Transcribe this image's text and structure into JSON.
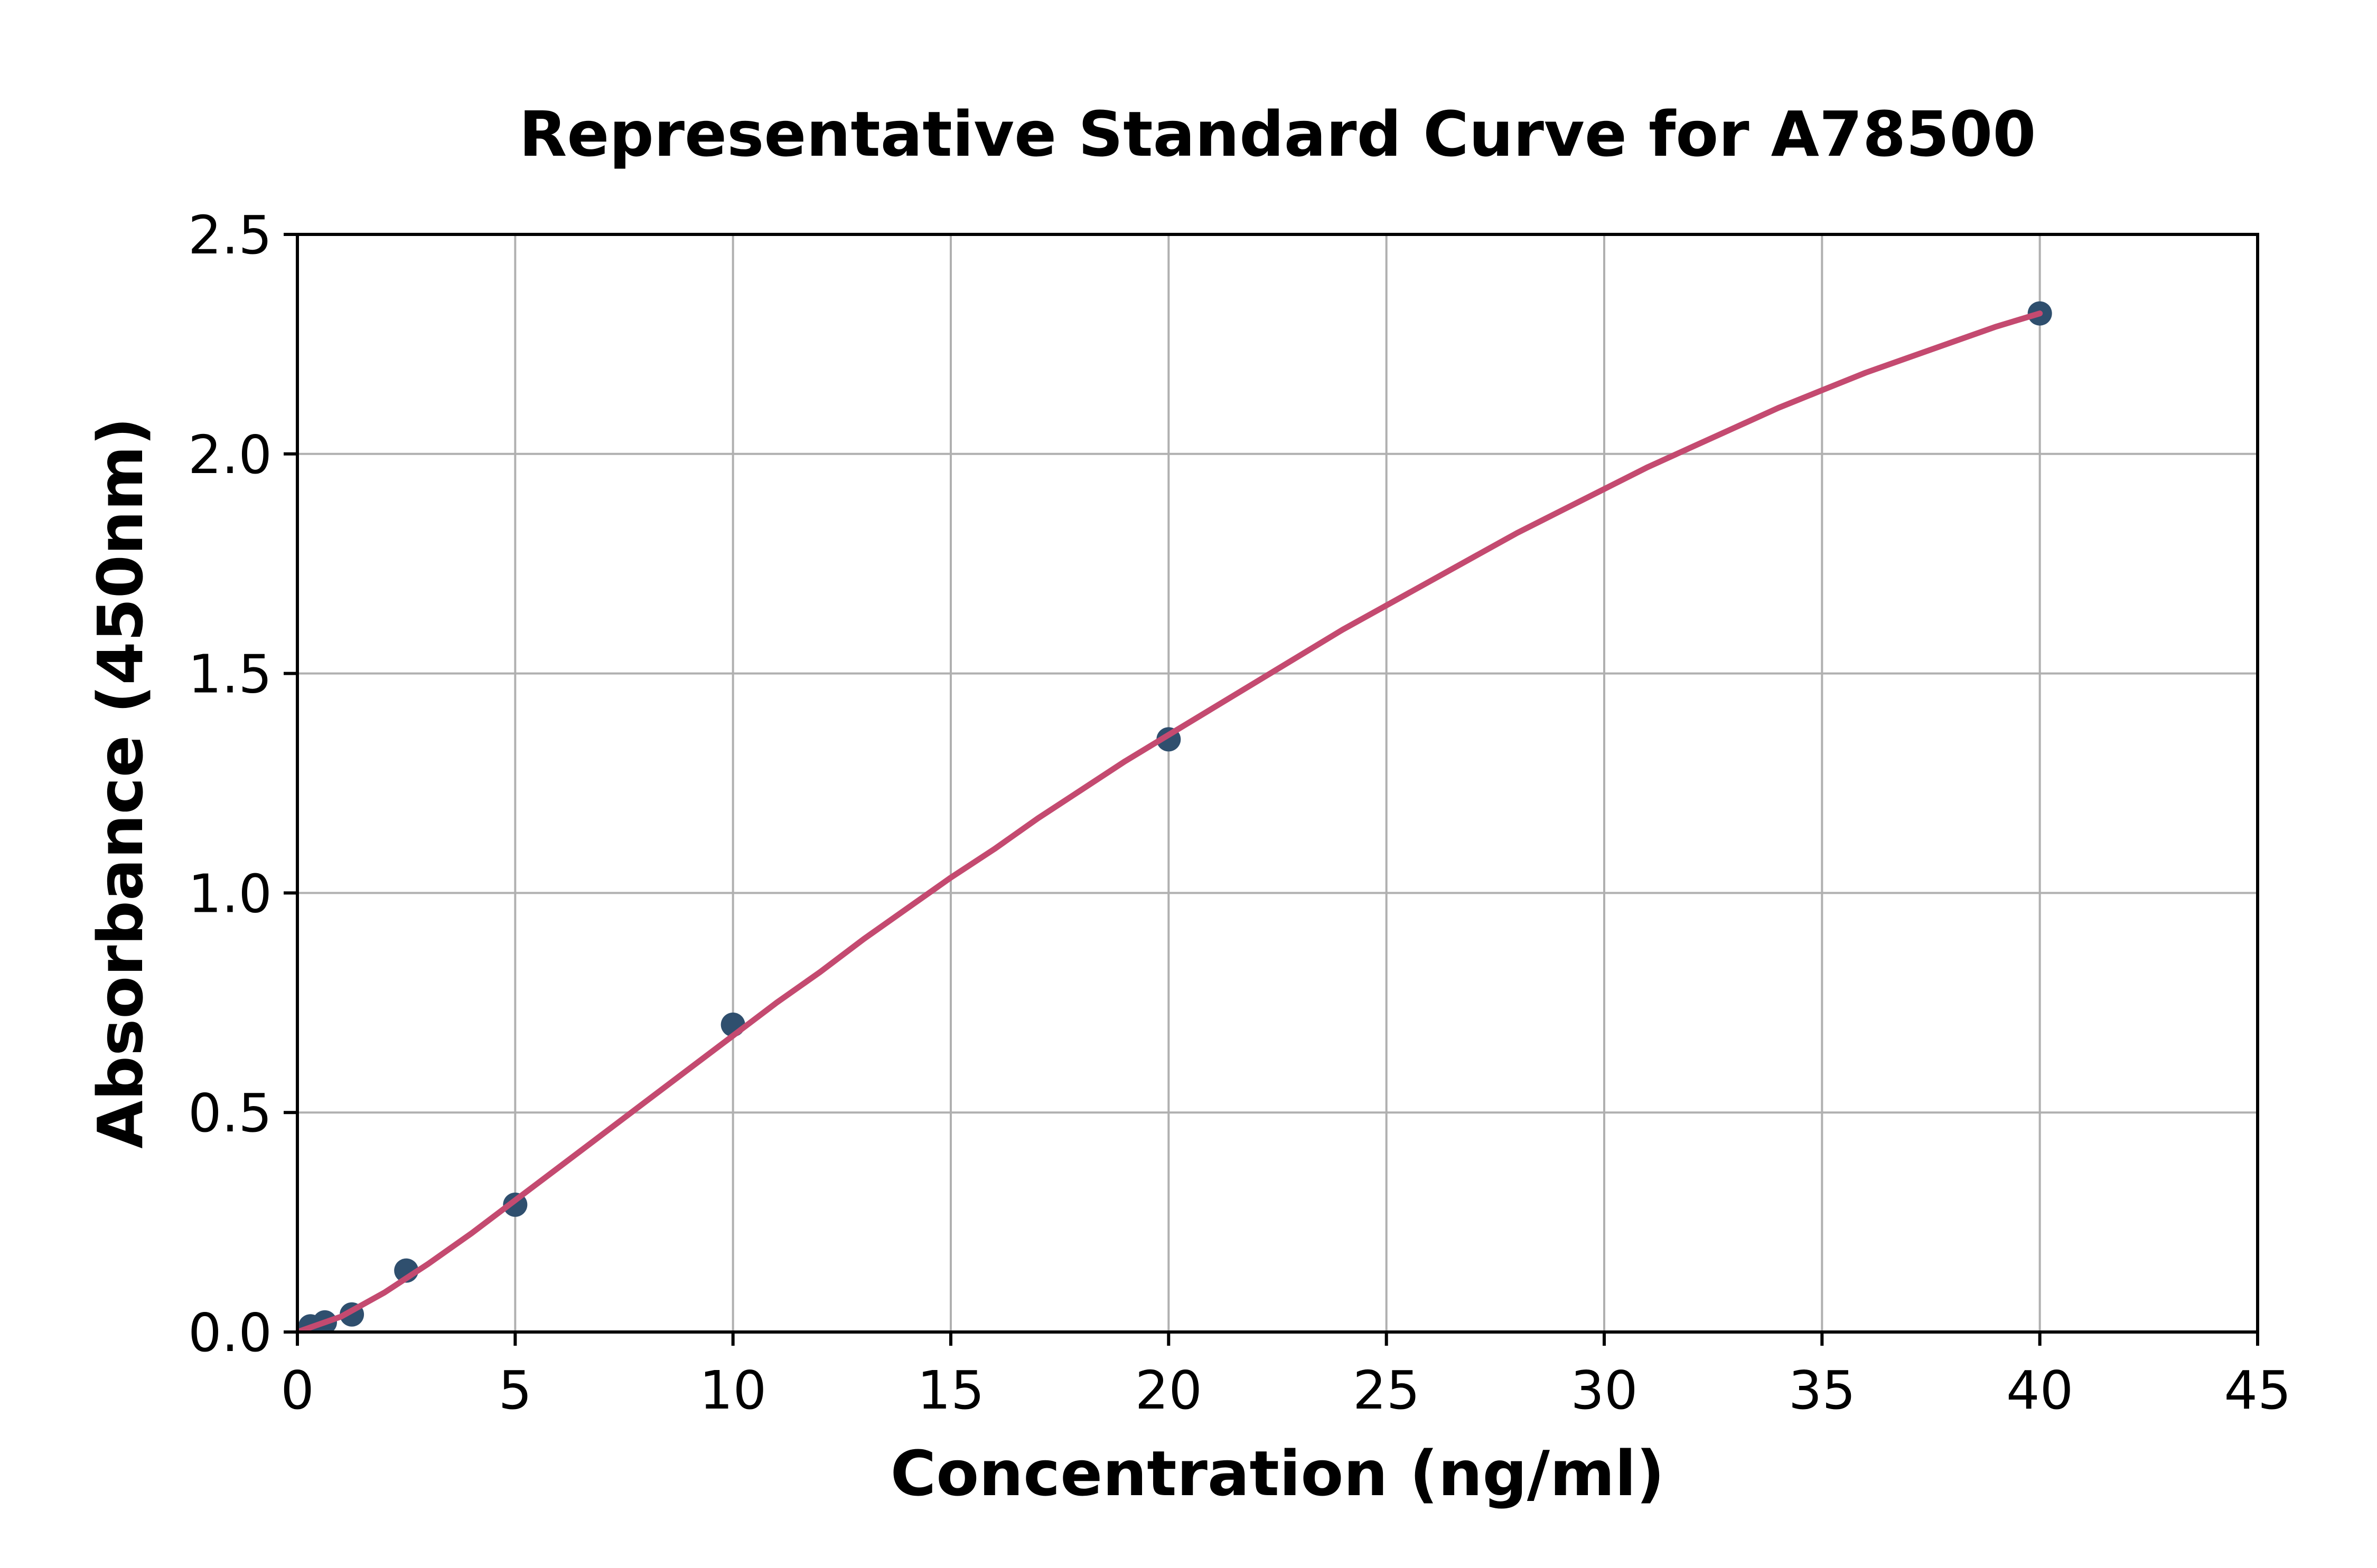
{
  "title": "Representative Standard Curve for A78500",
  "x_axis": {
    "label": "Concentration (ng/ml)",
    "tick_labels": [
      "0",
      "5",
      "10",
      "15",
      "20",
      "25",
      "30",
      "35",
      "40",
      "45"
    ],
    "tick_values": [
      0,
      5,
      10,
      15,
      20,
      25,
      30,
      35,
      40,
      45
    ],
    "range": [
      0,
      45
    ]
  },
  "y_axis": {
    "label": "Absorbance (450nm)",
    "tick_labels": [
      "0.0",
      "0.5",
      "1.0",
      "1.5",
      "2.0",
      "2.5"
    ],
    "tick_values": [
      0,
      0.5,
      1.0,
      1.5,
      2.0,
      2.5
    ],
    "range": [
      0,
      2.5
    ]
  },
  "colors": {
    "curve": "#C44A70",
    "marker": "#2F4F6E",
    "grid": "#B0B0B0",
    "spine": "#000000",
    "background": "#FFFFFF"
  },
  "chart_data": {
    "type": "scatter",
    "title": "Representative Standard Curve for A78500",
    "xlabel": "Concentration (ng/ml)",
    "ylabel": "Absorbance (450nm)",
    "xlim": [
      0,
      45
    ],
    "ylim": [
      0,
      2.5
    ],
    "grid": true,
    "series": [
      {
        "name": "standard-points",
        "points": [
          {
            "x": 0.3,
            "y": 0.013
          },
          {
            "x": 0.63,
            "y": 0.022
          },
          {
            "x": 1.25,
            "y": 0.04
          },
          {
            "x": 2.5,
            "y": 0.14
          },
          {
            "x": 5,
            "y": 0.29
          },
          {
            "x": 10,
            "y": 0.7
          },
          {
            "x": 20,
            "y": 1.35
          },
          {
            "x": 40,
            "y": 2.32
          }
        ]
      },
      {
        "name": "fit-curve",
        "x": [
          0,
          1,
          2,
          3,
          4,
          5,
          6,
          7,
          8,
          9,
          10,
          11,
          12,
          13,
          14,
          15,
          16,
          17,
          18,
          19,
          20,
          21,
          22,
          23,
          24,
          25,
          26,
          27,
          28,
          29,
          30,
          31,
          32,
          33,
          34,
          35,
          36,
          37,
          38,
          39,
          40
        ],
        "y": [
          0.0,
          0.035,
          0.09,
          0.155,
          0.225,
          0.3,
          0.375,
          0.45,
          0.525,
          0.6,
          0.675,
          0.75,
          0.82,
          0.895,
          0.965,
          1.035,
          1.1,
          1.17,
          1.235,
          1.3,
          1.36,
          1.42,
          1.48,
          1.54,
          1.6,
          1.655,
          1.71,
          1.765,
          1.82,
          1.87,
          1.92,
          1.97,
          2.015,
          2.06,
          2.105,
          2.145,
          2.185,
          2.22,
          2.255,
          2.29,
          2.32
        ]
      }
    ]
  }
}
